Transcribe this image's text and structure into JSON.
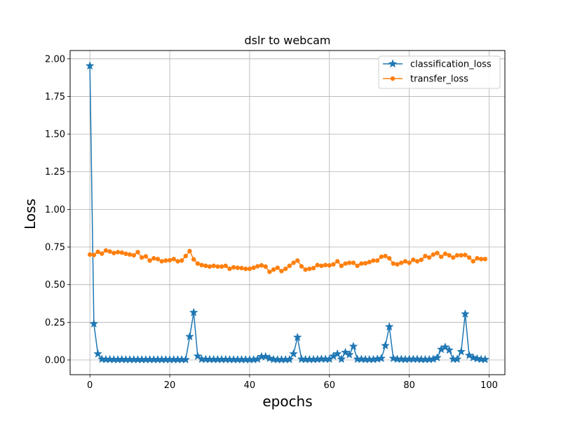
{
  "chart_data": {
    "type": "line",
    "title": "dslr to webcam",
    "xlabel": "epochs",
    "ylabel": "Loss",
    "xlim": [
      -4.95,
      103.95
    ],
    "ylim": [
      -0.098,
      2.055
    ],
    "xticks": [
      0,
      20,
      40,
      60,
      80,
      100
    ],
    "xtick_labels": [
      "0",
      "20",
      "40",
      "60",
      "80",
      "100"
    ],
    "yticks": [
      0,
      0.25,
      0.5,
      0.75,
      1.0,
      1.25,
      1.5,
      1.75,
      2.0
    ],
    "ytick_labels": [
      "0.00",
      "0.25",
      "0.50",
      "0.75",
      "1.00",
      "1.25",
      "1.50",
      "1.75",
      "2.00"
    ],
    "grid": true,
    "legend_position": "top-right",
    "x": [
      0,
      1,
      2,
      3,
      4,
      5,
      6,
      7,
      8,
      9,
      10,
      11,
      12,
      13,
      14,
      15,
      16,
      17,
      18,
      19,
      20,
      21,
      22,
      23,
      24,
      25,
      26,
      27,
      28,
      29,
      30,
      31,
      32,
      33,
      34,
      35,
      36,
      37,
      38,
      39,
      40,
      41,
      42,
      43,
      44,
      45,
      46,
      47,
      48,
      49,
      50,
      51,
      52,
      53,
      54,
      55,
      56,
      57,
      58,
      59,
      60,
      61,
      62,
      63,
      64,
      65,
      66,
      67,
      68,
      69,
      70,
      71,
      72,
      73,
      74,
      75,
      76,
      77,
      78,
      79,
      80,
      81,
      82,
      83,
      84,
      85,
      86,
      87,
      88,
      89,
      90,
      91,
      92,
      93,
      94,
      95,
      96,
      97,
      98,
      99
    ],
    "series": [
      {
        "name": "classification_loss",
        "color": "#1f77b4",
        "marker": "star",
        "values": [
          1.953,
          0.24,
          0.04,
          0.005,
          0.003,
          0.003,
          0.002,
          0.002,
          0.003,
          0.002,
          0.002,
          0.002,
          0.002,
          0.002,
          0.002,
          0.002,
          0.002,
          0.002,
          0.002,
          0.002,
          0.002,
          0.002,
          0.002,
          0.002,
          0.002,
          0.155,
          0.315,
          0.025,
          0.005,
          0.004,
          0.003,
          0.003,
          0.003,
          0.003,
          0.003,
          0.002,
          0.002,
          0.002,
          0.002,
          0.002,
          0.002,
          0.002,
          0.005,
          0.022,
          0.022,
          0.01,
          0.003,
          0.002,
          0.002,
          0.002,
          0.003,
          0.04,
          0.15,
          0.005,
          0.003,
          0.003,
          0.003,
          0.004,
          0.006,
          0.005,
          0.005,
          0.025,
          0.04,
          0.005,
          0.05,
          0.035,
          0.09,
          0.005,
          0.005,
          0.003,
          0.003,
          0.003,
          0.006,
          0.01,
          0.095,
          0.22,
          0.01,
          0.005,
          0.005,
          0.003,
          0.005,
          0.005,
          0.005,
          0.003,
          0.003,
          0.003,
          0.005,
          0.015,
          0.07,
          0.085,
          0.065,
          0.005,
          0.005,
          0.055,
          0.305,
          0.03,
          0.015,
          0.008,
          0.004,
          0.003
        ]
      },
      {
        "name": "transfer_loss",
        "color": "#ff7f0e",
        "marker": "circle",
        "values": [
          0.7,
          0.697,
          0.718,
          0.706,
          0.727,
          0.72,
          0.71,
          0.716,
          0.713,
          0.705,
          0.7,
          0.695,
          0.716,
          0.68,
          0.688,
          0.66,
          0.675,
          0.67,
          0.655,
          0.66,
          0.662,
          0.67,
          0.655,
          0.66,
          0.69,
          0.723,
          0.668,
          0.64,
          0.63,
          0.625,
          0.62,
          0.625,
          0.62,
          0.62,
          0.625,
          0.605,
          0.615,
          0.612,
          0.61,
          0.605,
          0.605,
          0.612,
          0.622,
          0.628,
          0.62,
          0.585,
          0.6,
          0.612,
          0.59,
          0.605,
          0.625,
          0.645,
          0.66,
          0.622,
          0.6,
          0.605,
          0.61,
          0.63,
          0.625,
          0.63,
          0.628,
          0.635,
          0.655,
          0.625,
          0.64,
          0.645,
          0.645,
          0.625,
          0.64,
          0.642,
          0.65,
          0.66,
          0.66,
          0.685,
          0.69,
          0.675,
          0.64,
          0.635,
          0.645,
          0.655,
          0.645,
          0.665,
          0.655,
          0.665,
          0.69,
          0.68,
          0.7,
          0.71,
          0.685,
          0.705,
          0.695,
          0.68,
          0.695,
          0.695,
          0.697,
          0.68,
          0.655,
          0.675,
          0.67,
          0.67
        ]
      }
    ]
  }
}
